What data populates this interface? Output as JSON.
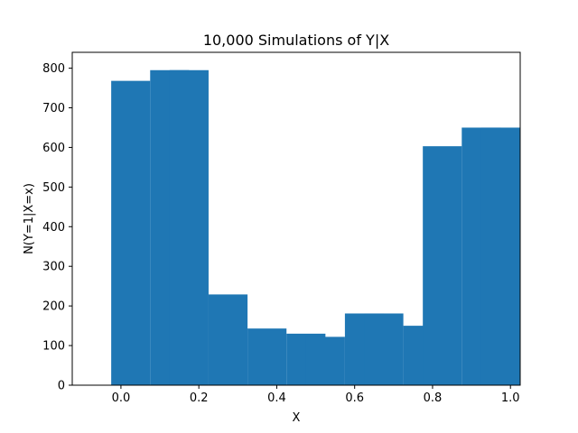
{
  "chart_data": {
    "type": "bar",
    "title": "10,000 Simulations of Y|X",
    "xlabel": "X",
    "ylabel": "N(Y=1|X=x)",
    "xlim": [
      -0.125,
      1.025
    ],
    "ylim": [
      0,
      840
    ],
    "xticks": [
      "0.0",
      "0.2",
      "0.4",
      "0.6",
      "0.8",
      "1.0"
    ],
    "xtick_values": [
      0.0,
      0.2,
      0.4,
      0.6,
      0.8,
      1.0
    ],
    "yticks": [
      "0",
      "100",
      "200",
      "300",
      "400",
      "500",
      "600",
      "700",
      "800"
    ],
    "ytick_values": [
      0,
      100,
      200,
      300,
      400,
      500,
      600,
      700,
      800
    ],
    "bar_width": 0.1,
    "x": [
      -0.025,
      0.075,
      0.125,
      0.225,
      0.325,
      0.425,
      0.475,
      0.575,
      0.625,
      0.725,
      0.775,
      0.875,
      0.925
    ],
    "values": [
      768,
      795,
      795,
      229,
      143,
      130,
      122,
      181,
      181,
      150,
      603,
      650,
      650
    ],
    "color": "#1f77b4",
    "grid": false
  }
}
